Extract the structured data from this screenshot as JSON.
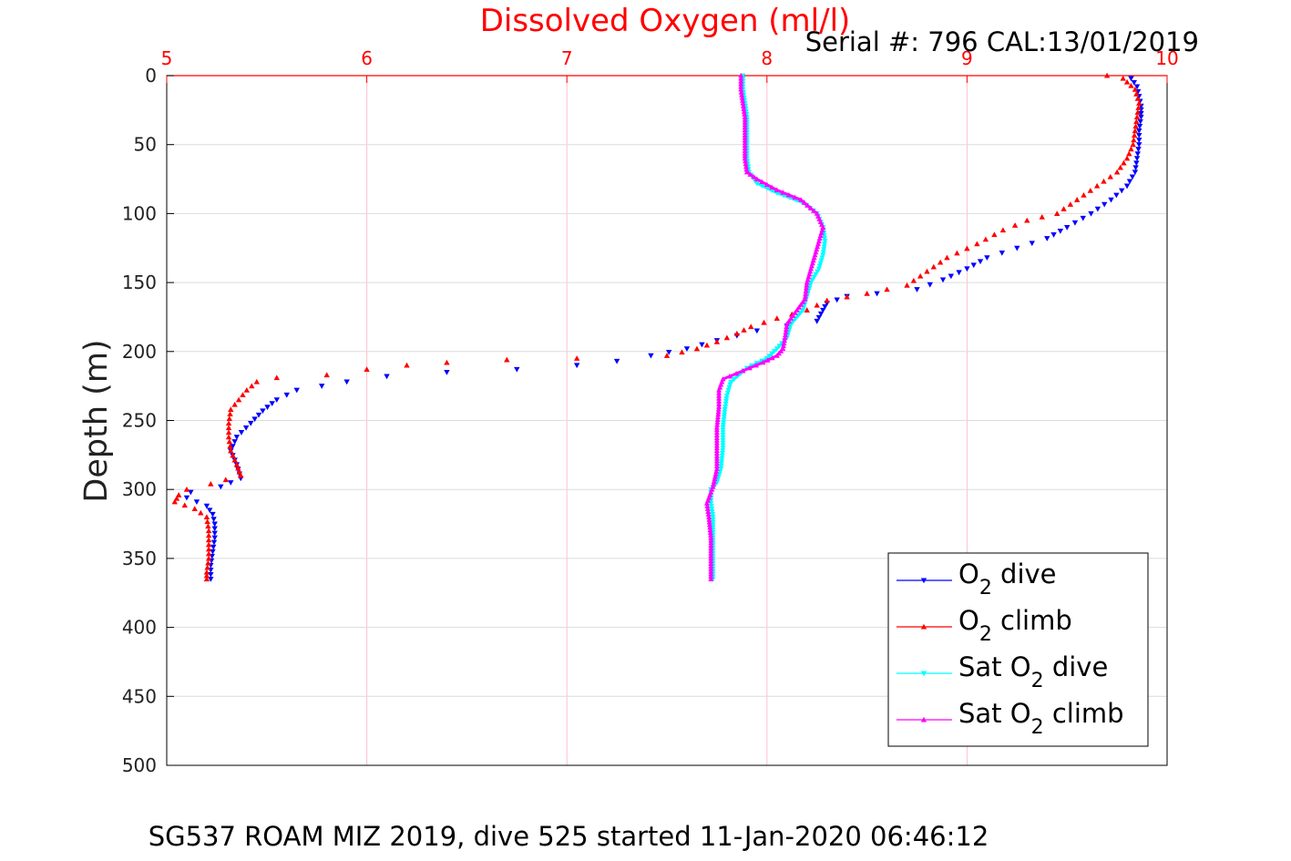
{
  "chart_data": {
    "type": "scatter",
    "title": "Dissolved Oxygen (ml/l)",
    "subtitle": "Serial #: 796  CAL:13/01/2019",
    "ylabel": "Depth (m)",
    "footer": "SG537 ROAM MIZ 2019, dive 525 started 11-Jan-2020 06:46:12",
    "xlim": [
      5,
      10
    ],
    "ylim": [
      0,
      500
    ],
    "y_reversed": true,
    "x_axis_position": "top",
    "x_ticks": [
      "5",
      "6",
      "7",
      "8",
      "9",
      "10"
    ],
    "y_ticks": [
      "0",
      "50",
      "100",
      "150",
      "200",
      "250",
      "300",
      "350",
      "400",
      "450",
      "500"
    ],
    "grid": true,
    "legend_position": "bottom-right",
    "colors": {
      "title": "#ff0000",
      "x_axis": "#ff0000",
      "grid_x": "#ffc0cb",
      "grid_y": "#dcdcdc"
    },
    "legend": [
      {
        "prefix": "O",
        "sub": "2",
        "suffix": " dive",
        "color": "#0000ff",
        "marker": "triangle-down"
      },
      {
        "prefix": "O",
        "sub": "2",
        "suffix": " climb",
        "color": "#ff0000",
        "marker": "triangle-up"
      },
      {
        "prefix": "Sat O",
        "sub": "2",
        "suffix": " dive",
        "color": "#00ffff",
        "marker": "triangle-down"
      },
      {
        "prefix": "Sat O",
        "sub": "2",
        "suffix": " climb",
        "color": "#ff00ff",
        "marker": "triangle-up"
      }
    ],
    "series": [
      {
        "name": "O2 dive",
        "color": "#0000ff",
        "marker": "triangle-down",
        "points": [
          [
            9.82,
            2
          ],
          [
            9.85,
            8
          ],
          [
            9.86,
            15
          ],
          [
            9.87,
            22
          ],
          [
            9.87,
            30
          ],
          [
            9.86,
            40
          ],
          [
            9.86,
            50
          ],
          [
            9.85,
            60
          ],
          [
            9.84,
            70
          ],
          [
            9.8,
            80
          ],
          [
            9.72,
            90
          ],
          [
            9.62,
            100
          ],
          [
            9.5,
            110
          ],
          [
            9.4,
            118
          ],
          [
            9.25,
            125
          ],
          [
            9.1,
            132
          ],
          [
            9.0,
            140
          ],
          [
            8.88,
            148
          ],
          [
            8.75,
            155
          ],
          [
            8.55,
            158
          ],
          [
            8.4,
            160
          ],
          [
            8.3,
            165
          ],
          [
            8.28,
            170
          ],
          [
            8.25,
            178
          ],
          [
            7.95,
            185
          ],
          [
            7.75,
            192
          ],
          [
            7.6,
            198
          ],
          [
            7.42,
            203
          ],
          [
            7.25,
            207
          ],
          [
            7.05,
            210
          ],
          [
            6.75,
            213
          ],
          [
            6.4,
            215
          ],
          [
            6.1,
            218
          ],
          [
            5.9,
            222
          ],
          [
            5.65,
            228
          ],
          [
            5.55,
            235
          ],
          [
            5.48,
            243
          ],
          [
            5.42,
            252
          ],
          [
            5.35,
            262
          ],
          [
            5.32,
            272
          ],
          [
            5.35,
            282
          ],
          [
            5.37,
            292
          ],
          [
            5.27,
            298
          ],
          [
            5.12,
            302
          ],
          [
            5.1,
            306
          ],
          [
            5.2,
            312
          ],
          [
            5.23,
            318
          ],
          [
            5.24,
            325
          ],
          [
            5.24,
            335
          ],
          [
            5.23,
            345
          ],
          [
            5.22,
            355
          ],
          [
            5.22,
            365
          ]
        ]
      },
      {
        "name": "O2 climb",
        "color": "#ff0000",
        "marker": "triangle-up",
        "points": [
          [
            9.7,
            0
          ],
          [
            9.78,
            2
          ],
          [
            9.84,
            10
          ],
          [
            9.86,
            20
          ],
          [
            9.85,
            30
          ],
          [
            9.84,
            40
          ],
          [
            9.83,
            50
          ],
          [
            9.8,
            60
          ],
          [
            9.75,
            70
          ],
          [
            9.65,
            80
          ],
          [
            9.55,
            90
          ],
          [
            9.45,
            100
          ],
          [
            9.3,
            105
          ],
          [
            9.18,
            112
          ],
          [
            9.05,
            122
          ],
          [
            8.9,
            132
          ],
          [
            8.8,
            142
          ],
          [
            8.7,
            152
          ],
          [
            8.5,
            158
          ],
          [
            8.3,
            163
          ],
          [
            8.2,
            170
          ],
          [
            8.05,
            176
          ],
          [
            7.92,
            182
          ],
          [
            7.85,
            187
          ],
          [
            7.75,
            193
          ],
          [
            7.65,
            198
          ],
          [
            7.5,
            203
          ],
          [
            7.05,
            205
          ],
          [
            6.7,
            206
          ],
          [
            6.4,
            208
          ],
          [
            6.2,
            210
          ],
          [
            6.0,
            213
          ],
          [
            5.8,
            217
          ],
          [
            5.55,
            219
          ],
          [
            5.45,
            222
          ],
          [
            5.4,
            228
          ],
          [
            5.36,
            235
          ],
          [
            5.32,
            242
          ],
          [
            5.31,
            252
          ],
          [
            5.31,
            262
          ],
          [
            5.32,
            272
          ],
          [
            5.35,
            282
          ],
          [
            5.37,
            290
          ],
          [
            5.22,
            296
          ],
          [
            5.1,
            300
          ],
          [
            5.06,
            304
          ],
          [
            5.04,
            309
          ],
          [
            5.14,
            314
          ],
          [
            5.2,
            320
          ],
          [
            5.21,
            330
          ],
          [
            5.21,
            340
          ],
          [
            5.21,
            350
          ],
          [
            5.2,
            360
          ],
          [
            5.2,
            365
          ]
        ]
      },
      {
        "name": "Sat O2 dive",
        "color": "#00ffff",
        "marker": "triangle-down",
        "points": [
          [
            7.88,
            0
          ],
          [
            7.88,
            10
          ],
          [
            7.89,
            20
          ],
          [
            7.9,
            30
          ],
          [
            7.9,
            45
          ],
          [
            7.9,
            60
          ],
          [
            7.91,
            70
          ],
          [
            7.95,
            78
          ],
          [
            8.05,
            85
          ],
          [
            8.18,
            92
          ],
          [
            8.25,
            100
          ],
          [
            8.28,
            110
          ],
          [
            8.29,
            120
          ],
          [
            8.28,
            130
          ],
          [
            8.26,
            140
          ],
          [
            8.22,
            150
          ],
          [
            8.2,
            160
          ],
          [
            8.18,
            170
          ],
          [
            8.12,
            180
          ],
          [
            8.1,
            190
          ],
          [
            8.05,
            198
          ],
          [
            8.0,
            205
          ],
          [
            7.9,
            212
          ],
          [
            7.82,
            222
          ],
          [
            7.8,
            232
          ],
          [
            7.79,
            242
          ],
          [
            7.78,
            255
          ],
          [
            7.78,
            270
          ],
          [
            7.77,
            285
          ],
          [
            7.75,
            295
          ],
          [
            7.72,
            300
          ],
          [
            7.72,
            310
          ],
          [
            7.73,
            320
          ],
          [
            7.73,
            335
          ],
          [
            7.73,
            350
          ],
          [
            7.73,
            365
          ]
        ]
      },
      {
        "name": "Sat O2 climb",
        "color": "#ff00ff",
        "marker": "triangle-up",
        "points": [
          [
            7.87,
            0
          ],
          [
            7.87,
            10
          ],
          [
            7.88,
            20
          ],
          [
            7.89,
            30
          ],
          [
            7.89,
            45
          ],
          [
            7.89,
            60
          ],
          [
            7.9,
            70
          ],
          [
            7.95,
            75
          ],
          [
            8.05,
            83
          ],
          [
            8.17,
            90
          ],
          [
            8.25,
            100
          ],
          [
            8.28,
            110
          ],
          [
            8.26,
            120
          ],
          [
            8.24,
            130
          ],
          [
            8.22,
            140
          ],
          [
            8.2,
            150
          ],
          [
            8.19,
            162
          ],
          [
            8.14,
            172
          ],
          [
            8.1,
            180
          ],
          [
            8.09,
            190
          ],
          [
            8.08,
            198
          ],
          [
            8.05,
            203
          ],
          [
            7.98,
            208
          ],
          [
            7.88,
            214
          ],
          [
            7.78,
            220
          ],
          [
            7.76,
            228
          ],
          [
            7.76,
            240
          ],
          [
            7.75,
            255
          ],
          [
            7.75,
            270
          ],
          [
            7.75,
            285
          ],
          [
            7.73,
            298
          ],
          [
            7.7,
            310
          ],
          [
            7.71,
            320
          ],
          [
            7.72,
            335
          ],
          [
            7.72,
            350
          ],
          [
            7.72,
            365
          ]
        ]
      }
    ]
  }
}
